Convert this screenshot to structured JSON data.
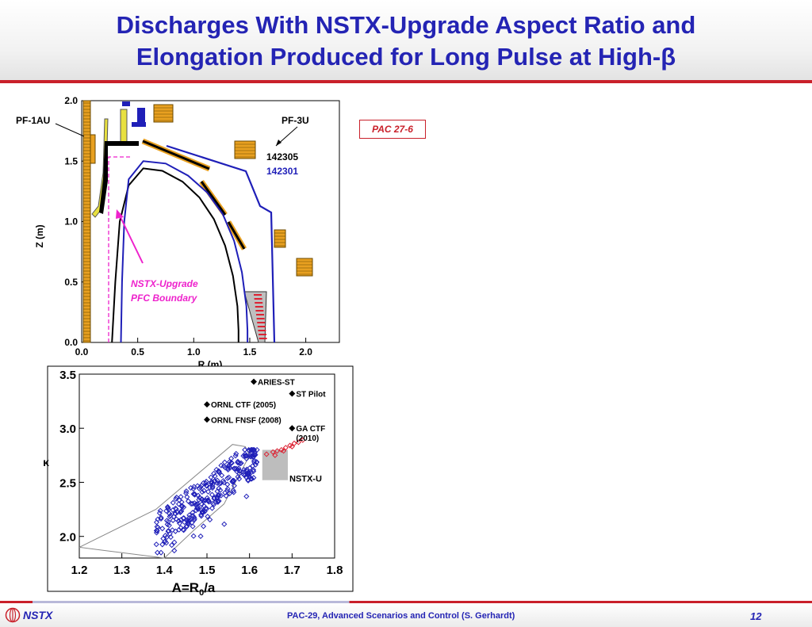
{
  "slide": {
    "title_line1": "Discharges With NSTX-Upgrade Aspect Ratio and",
    "title_line2": "Elongation Produced for Long Pulse at High-β",
    "badge": "PAC 27-6",
    "footer_logo": "NSTX",
    "footer_text": "PAC-29, Advanced Scenarios and Control (S. Gerhardt)",
    "page_number": "12"
  },
  "colors": {
    "title": "#2424b4",
    "accent_red": "#c9202a",
    "blue_shot": "#1f1fb8",
    "black_shot": "#000000",
    "magenta": "#ee22cc",
    "coil_orange": "#e8a020",
    "plasma_red": "#dd2233",
    "nstxu_box": "#bdbdbd"
  },
  "chart_data": [
    {
      "type": "line",
      "xlabel": "R (m)",
      "ylabel": "Z (m)",
      "xlim": [
        0.0,
        2.3
      ],
      "ylim": [
        0.0,
        2.0
      ],
      "xticks": [
        "0.0",
        "0.5",
        "1.0",
        "1.5",
        "2.0"
      ],
      "yticks": [
        "0.0",
        "0.5",
        "1.0",
        "1.5",
        "2.0"
      ],
      "series": [
        {
          "name": "142305",
          "color": "#000000",
          "x": [
            0.27,
            0.3,
            0.34,
            0.42,
            0.55,
            0.72,
            0.9,
            1.05,
            1.18,
            1.28,
            1.35,
            1.39,
            1.4,
            1.4
          ],
          "y": [
            0.0,
            0.5,
            1.0,
            1.3,
            1.44,
            1.42,
            1.33,
            1.2,
            1.02,
            0.8,
            0.55,
            0.3,
            0.1,
            0.0
          ]
        },
        {
          "name": "142301",
          "color": "#1f1fb8",
          "x": [
            0.35,
            0.36,
            0.38,
            0.42,
            0.55,
            0.75,
            0.95,
            1.12,
            1.26,
            1.36,
            1.43,
            1.47,
            1.48,
            1.48
          ],
          "y": [
            0.0,
            0.5,
            1.0,
            1.35,
            1.5,
            1.48,
            1.38,
            1.24,
            1.06,
            0.84,
            0.58,
            0.3,
            0.1,
            0.0
          ]
        }
      ],
      "annotations": [
        {
          "text": "PF-1AU"
        },
        {
          "text": "PF-3U"
        },
        {
          "text": "NSTX-Upgrade"
        },
        {
          "text": "PFC Boundary"
        }
      ]
    },
    {
      "type": "scatter",
      "xlabel_main": "A=R",
      "xlabel_sub": "0",
      "xlabel_tail": "/a",
      "ylabel": "κ",
      "xlim": [
        1.2,
        1.8
      ],
      "ylim": [
        1.8,
        3.5
      ],
      "xticks": [
        "1.2",
        "1.3",
        "1.4",
        "1.5",
        "1.6",
        "1.7",
        "1.8"
      ],
      "yticks": [
        "2.0",
        "2.5",
        "3.0",
        "3.5"
      ],
      "labeled_points": [
        {
          "label": "ARIES-ST",
          "x": 1.61,
          "y": 3.43
        },
        {
          "label": "ST Pilot",
          "x": 1.7,
          "y": 3.32
        },
        {
          "label": "ORNL CTF (2005)",
          "x": 1.5,
          "y": 3.22
        },
        {
          "label": "ORNL FNSF (2008)",
          "x": 1.5,
          "y": 3.08
        },
        {
          "label": "GA CTF",
          "x": 1.7,
          "y": 3.0
        },
        {
          "label": "(2010)"
        }
      ],
      "nstxu_label": "NSTX-U",
      "nstxu_box": {
        "x": [
          1.63,
          1.69
        ],
        "y": [
          2.52,
          2.8
        ]
      },
      "envelope": {
        "x": [
          1.2,
          1.38,
          1.56,
          1.59,
          1.6,
          1.54,
          1.47,
          1.4,
          1.2
        ],
        "y": [
          1.9,
          2.25,
          2.85,
          2.83,
          2.75,
          2.3,
          2.06,
          1.8,
          1.9
        ]
      },
      "red_points": {
        "x": [
          1.64,
          1.655,
          1.665,
          1.675,
          1.685,
          1.695,
          1.705,
          1.715,
          1.725,
          1.66,
          1.68,
          1.7
        ],
        "y": [
          2.76,
          2.78,
          2.79,
          2.8,
          2.82,
          2.84,
          2.86,
          2.87,
          2.89,
          2.75,
          2.79,
          2.83
        ]
      },
      "blue_cluster": {
        "count": 300,
        "x_range": [
          1.38,
          1.62
        ],
        "y_range": [
          1.85,
          2.8
        ],
        "trend": {
          "x0": 1.38,
          "y0": 2.05,
          "slope": 2.9
        }
      }
    }
  ]
}
